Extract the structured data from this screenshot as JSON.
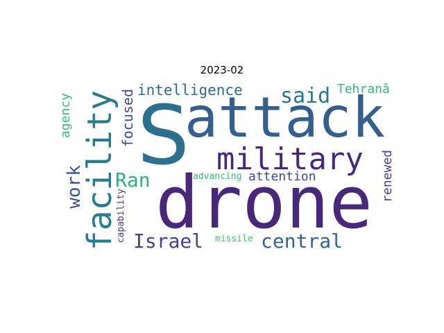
{
  "chart_data": {
    "type": "wordcloud",
    "title": "2023-02",
    "words": [
      {
        "text": "S",
        "color": "#2f6f8e"
      },
      {
        "text": "attack",
        "color": "#355f8d"
      },
      {
        "text": "drone",
        "color": "#482878"
      },
      {
        "text": "military",
        "color": "#46287a"
      },
      {
        "text": "facility",
        "color": "#297b8e"
      },
      {
        "text": "said",
        "color": "#2a788e"
      },
      {
        "text": "intelligence",
        "color": "#31688e"
      },
      {
        "text": "Tehranâ",
        "color": "#35b779"
      },
      {
        "text": "agency",
        "color": "#3aba76"
      },
      {
        "text": "focused",
        "color": "#3e4a89"
      },
      {
        "text": "work",
        "color": "#3b528b"
      },
      {
        "text": "Ran",
        "color": "#2db27d"
      },
      {
        "text": "Israel",
        "color": "#414487"
      },
      {
        "text": "central",
        "color": "#33638d"
      },
      {
        "text": "attention",
        "color": "#3f4889"
      },
      {
        "text": "advancing",
        "color": "#35b779"
      },
      {
        "text": "renewed",
        "color": "#404688"
      },
      {
        "text": "capability",
        "color": "#443a83"
      },
      {
        "text": "missile",
        "color": "#4ac16d"
      }
    ]
  }
}
